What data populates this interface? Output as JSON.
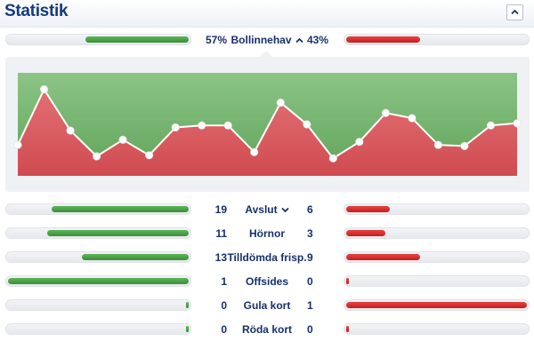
{
  "header": {
    "title": "Statistik"
  },
  "possession": {
    "label": "Bollinnehav",
    "home": "57%",
    "away": "43%",
    "home_value": 57,
    "away_value": 43
  },
  "chart_data": {
    "type": "area",
    "x": [
      0,
      1,
      2,
      3,
      4,
      5,
      6,
      7,
      8,
      9,
      10,
      11,
      12,
      13,
      14,
      15,
      16,
      17,
      18,
      19
    ],
    "values": [
      0.3,
      0.84,
      0.44,
      0.19,
      0.35,
      0.2,
      0.47,
      0.49,
      0.49,
      0.23,
      0.71,
      0.5,
      0.17,
      0.33,
      0.61,
      0.56,
      0.3,
      0.29,
      0.49,
      0.51
    ],
    "ylim": [
      0,
      1
    ]
  },
  "stats": [
    {
      "label": "Avslut",
      "home": "19",
      "away": "6",
      "home_value": 19,
      "away_value": 6,
      "expandable": true
    },
    {
      "label": "Hörnor",
      "home": "11",
      "away": "3",
      "home_value": 11,
      "away_value": 3,
      "expandable": false
    },
    {
      "label": "Tilldömda frisp.",
      "home": "13",
      "away": "9",
      "home_value": 13,
      "away_value": 9,
      "expandable": false
    },
    {
      "label": "Offsides",
      "home": "1",
      "away": "0",
      "home_value": 1,
      "away_value": 0,
      "expandable": false
    },
    {
      "label": "Gula kort",
      "home": "0",
      "away": "1",
      "home_value": 0,
      "away_value": 1,
      "expandable": false
    },
    {
      "label": "Röda kort",
      "home": "0",
      "away": "0",
      "home_value": 0,
      "away_value": 0,
      "expandable": false
    }
  ],
  "colors": {
    "home": "#3a8f37",
    "away": "#c51e1e",
    "chart_home_area": "#82bd78",
    "chart_away_area": "#d85a5e",
    "title": "#143a7e"
  },
  "icons": {
    "collapse": "chevron-up-icon",
    "expand": "chevron-down-icon"
  }
}
